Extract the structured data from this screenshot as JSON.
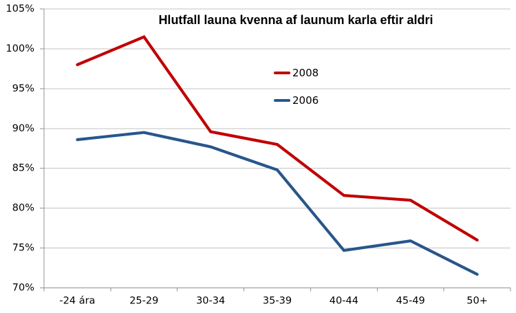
{
  "chart_data": {
    "type": "line",
    "title": "Hlutfall launa kvenna af launum karla eftir aldri",
    "categories": [
      "-24 ára",
      "25-29",
      "30-34",
      "35-39",
      "40-44",
      "45-49",
      "50+"
    ],
    "series": [
      {
        "name": "2008",
        "color": "#c00000",
        "values": [
          98.0,
          101.5,
          89.6,
          88.0,
          81.6,
          81.0,
          76.0
        ]
      },
      {
        "name": "2006",
        "color": "#28568c",
        "values": [
          88.6,
          89.5,
          87.7,
          84.8,
          74.7,
          75.9,
          71.7
        ]
      }
    ],
    "xlabel": "",
    "ylabel": "",
    "ylim": [
      70,
      105
    ],
    "ytick_step": 5,
    "ytick_suffix": "%",
    "grid": true,
    "legend_position": "center-right-stacked"
  }
}
